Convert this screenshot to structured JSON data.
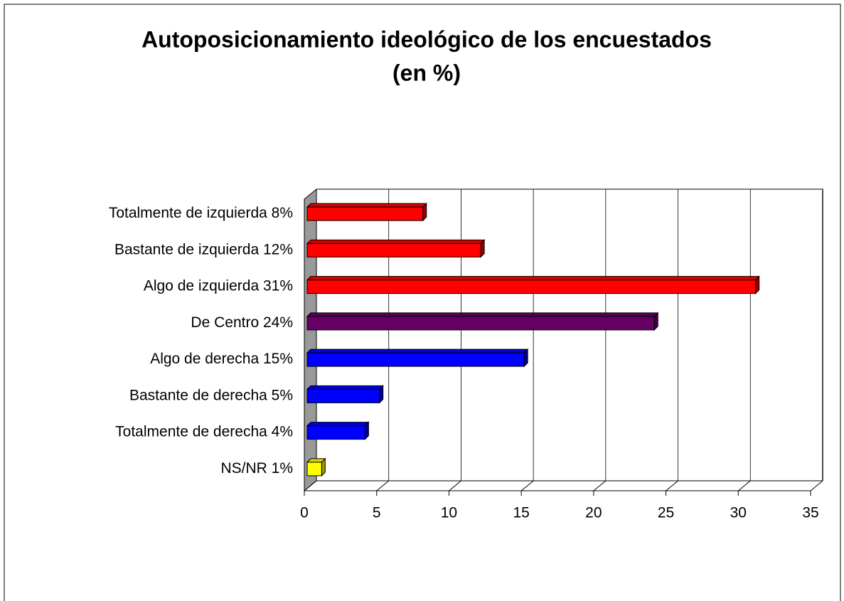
{
  "chart_data": {
    "type": "bar",
    "orientation": "horizontal",
    "three_d": true,
    "title": "Autoposicionamiento ideológico de los encuestados",
    "subtitle": "(en %)",
    "categories": [
      "Totalmente de izquierda  8%",
      "Bastante de izquierda 12%",
      "Algo de izquierda  31%",
      "De Centro  24%",
      "Algo de derecha 15%",
      "Bastante de derecha 5%",
      "Totalmente de derecha  4%",
      "NS/NR  1%"
    ],
    "values": [
      8,
      12,
      31,
      24,
      15,
      5,
      4,
      1
    ],
    "colors": [
      "#ff0000",
      "#ff0000",
      "#ff0000",
      "#660066",
      "#0000ff",
      "#0000ff",
      "#0000ff",
      "#ffff00"
    ],
    "xlim": [
      0,
      35
    ],
    "xticks": [
      0,
      5,
      10,
      15,
      20,
      25,
      30,
      35
    ],
    "grid": true
  }
}
